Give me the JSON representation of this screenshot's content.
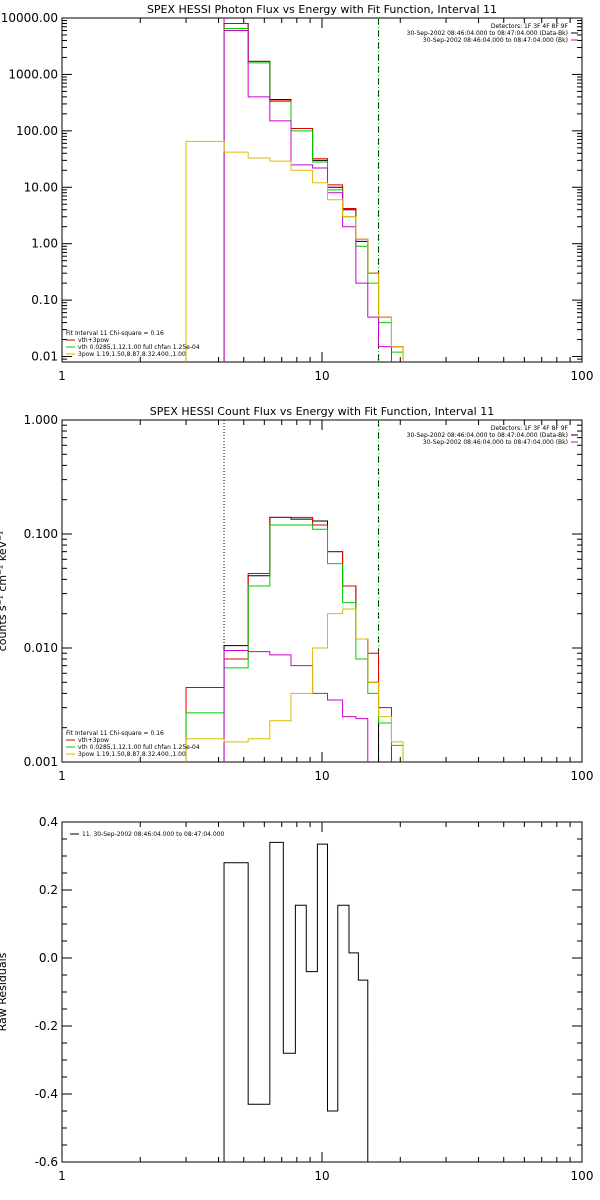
{
  "chart_data": [
    {
      "type": "line",
      "id": "photon",
      "title": "SPEX HESSI Photon Flux vs Energy with Fit Function, Interval 11",
      "ylabel": "",
      "xlabel": "",
      "xscale": "log",
      "yscale": "log",
      "xlim": [
        1,
        100
      ],
      "ylim": [
        0.008,
        10000
      ],
      "xticks": [
        {
          "v": 1,
          "label": "1"
        },
        {
          "v": 10,
          "label": "10"
        },
        {
          "v": 100,
          "label": "100"
        }
      ],
      "yticks": [
        {
          "v": 0.01,
          "label": "0.01"
        },
        {
          "v": 0.1,
          "label": "0.10"
        },
        {
          "v": 1,
          "label": "1.00"
        },
        {
          "v": 10,
          "label": "10.00"
        },
        {
          "v": 100,
          "label": "100.00"
        },
        {
          "v": 1000,
          "label": "1000.00"
        },
        {
          "v": 10000,
          "label": "10000.00"
        }
      ],
      "vlines": [
        {
          "x": 4.2,
          "style": "solid",
          "color": "#cc00cc"
        },
        {
          "x": 16.5,
          "style": "dashed",
          "color": "#000000"
        },
        {
          "x": 16.5,
          "style": "dotted",
          "color": "#00cc00"
        }
      ],
      "info_lines": [
        "Detectors: 1F 3F 4F 8F 9F",
        "30-Sep-2002 08:46:04.000 to 08:47:04.000 (Data-Bk)",
        "30-Sep-2002 08:46:04.000 to 08:47:04.000 (Bk)"
      ],
      "info_colors": [
        "#000000",
        "#000000",
        "#cc00cc"
      ],
      "legend_lines": [
        "Fit Interval 11    Chi-square = 0.16",
        "vth+3pow",
        "vth 0.0285,1.12,1.00  full chfan 1.25e-04",
        "3pow 1.19,1.50,8.87,8.32,400.,1.00"
      ],
      "legend_colors": [
        "#000000",
        "#dd0000",
        "#00cc00",
        "#ddbb00"
      ],
      "edges": [
        3,
        4.2,
        5.2,
        6.3,
        7.6,
        9.2,
        10.5,
        12,
        13.5,
        15,
        16.5,
        18.5,
        20.5
      ],
      "series": [
        {
          "color": "#000000",
          "values": [
            null,
            8000,
            1700,
            360,
            110,
            30,
            10,
            4,
            1.1,
            0.3,
            0.05,
            0.015
          ]
        },
        {
          "color": "#dd0000",
          "values": [
            null,
            8000,
            1700,
            350,
            110,
            32,
            11,
            4.2,
            1.2,
            0.3,
            0.05,
            0.015
          ]
        },
        {
          "color": "#00cc00",
          "values": [
            null,
            6500,
            1600,
            330,
            100,
            28,
            9,
            3,
            0.9,
            0.2,
            0.04,
            0.012
          ]
        },
        {
          "color": "#cc00cc",
          "values": [
            null,
            6000,
            400,
            150,
            25,
            22,
            8,
            2,
            0.2,
            0.05,
            0.015,
            null
          ]
        },
        {
          "color": "#ddbb00",
          "values": [
            65,
            42,
            33,
            29,
            20,
            12,
            6,
            3,
            1.2,
            0.3,
            0.05,
            0.015
          ]
        }
      ]
    },
    {
      "type": "line",
      "id": "count",
      "title": "SPEX HESSI Count Flux vs Energy with Fit Function, Interval 11",
      "ylabel": "counts s⁻¹ cm⁻² keV⁻¹",
      "xlabel": "",
      "xscale": "log",
      "yscale": "log",
      "xlim": [
        1,
        100
      ],
      "ylim": [
        0.001,
        1
      ],
      "xticks": [
        {
          "v": 1,
          "label": "1"
        },
        {
          "v": 10,
          "label": "10"
        },
        {
          "v": 100,
          "label": "100"
        }
      ],
      "yticks": [
        {
          "v": 0.001,
          "label": "0.001"
        },
        {
          "v": 0.01,
          "label": "0.010"
        },
        {
          "v": 0.1,
          "label": "0.100"
        },
        {
          "v": 1,
          "label": "1.000"
        }
      ],
      "vlines": [
        {
          "x": 4.2,
          "style": "dotted",
          "color": "#000000"
        },
        {
          "x": 16.5,
          "style": "dashed",
          "color": "#000000"
        },
        {
          "x": 16.5,
          "style": "dotted",
          "color": "#00cc00"
        }
      ],
      "info_lines": [
        "Detectors: 1F 3F 4F 8F 9F",
        "30-Sep-2002 08:46:04.000 to 08:47:04.000 (Data-Bk)",
        "30-Sep-2002 08:46:04.000 to 08:47:04.000 (Bk)"
      ],
      "info_colors": [
        "#000000",
        "#000000",
        "#cc00cc"
      ],
      "legend_lines": [
        "Fit Interval 11    Chi-square = 0.16",
        "vth+3pow",
        "vth 0.0285,1.12,1.00  full chfan 1.25e-04",
        "3pow 1.19,1.50,8.87,8.32,400.,1.00"
      ],
      "legend_colors": [
        "#000000",
        "#dd0000",
        "#00cc00",
        "#ddbb00"
      ],
      "edges": [
        3,
        4.2,
        5.2,
        6.3,
        7.6,
        9.2,
        10.5,
        12,
        13.5,
        15,
        16.5,
        18.5,
        20.5
      ],
      "series": [
        {
          "color": "#000000",
          "values": [
            null,
            0.0105,
            0.043,
            0.14,
            0.135,
            0.13,
            0.07,
            0.035,
            0.012,
            0.005,
            null,
            null
          ]
        },
        {
          "color": "#dd0000",
          "values": [
            0.0045,
            0.008,
            0.045,
            0.14,
            0.14,
            0.12,
            0.07,
            0.035,
            0.012,
            0.009,
            0.003,
            null
          ]
        },
        {
          "color": "#00cc00",
          "values": [
            0.0027,
            0.0067,
            0.035,
            0.12,
            0.12,
            0.11,
            0.055,
            0.025,
            0.008,
            0.004,
            0.0022,
            0.0014
          ]
        },
        {
          "color": "#cc00cc",
          "values": [
            null,
            0.0095,
            0.0093,
            0.0087,
            0.007,
            0.004,
            0.0035,
            0.0025,
            0.0024,
            null,
            null,
            null
          ]
        },
        {
          "color": "#ddbb00",
          "values": [
            0.0016,
            0.0015,
            0.0016,
            0.0023,
            0.004,
            0.01,
            0.02,
            0.022,
            0.012,
            0.005,
            0.0025,
            0.0015
          ]
        }
      ]
    },
    {
      "type": "line",
      "id": "residuals",
      "title": "",
      "ylabel": "Raw Residuals",
      "xlabel": "",
      "xscale": "log",
      "yscale": "linear",
      "xlim": [
        1,
        100
      ],
      "ylim": [
        -0.6,
        0.4
      ],
      "xticks": [
        {
          "v": 1,
          "label": "1"
        },
        {
          "v": 10,
          "label": "10"
        },
        {
          "v": 100,
          "label": "100"
        }
      ],
      "yticks": [
        {
          "v": -0.6,
          "label": "-0.6"
        },
        {
          "v": -0.4,
          "label": "-0.4"
        },
        {
          "v": -0.2,
          "label": "-0.2"
        },
        {
          "v": 0,
          "label": "0.0"
        },
        {
          "v": 0.2,
          "label": "0.2"
        },
        {
          "v": 0.4,
          "label": "0.4"
        }
      ],
      "vlines": [],
      "info_lines": [],
      "info_colors": [],
      "legend_lines": [
        "11. 30-Sep-2002 08:46:04.000 to 08:47:04.000"
      ],
      "legend_colors": [
        "#000000"
      ],
      "legend_marker": true,
      "edges": [
        4.2,
        5.2,
        6.3,
        7.1,
        7.9,
        8.7,
        9.6,
        10.5,
        11.5,
        12.7,
        13.8,
        15,
        16.5
      ],
      "series": [
        {
          "color": "#000000",
          "values": [
            0.28,
            -0.43,
            0.34,
            -0.28,
            0.155,
            -0.04,
            0.335,
            -0.45,
            0.155,
            0.015,
            -0.065,
            null
          ]
        }
      ]
    }
  ]
}
